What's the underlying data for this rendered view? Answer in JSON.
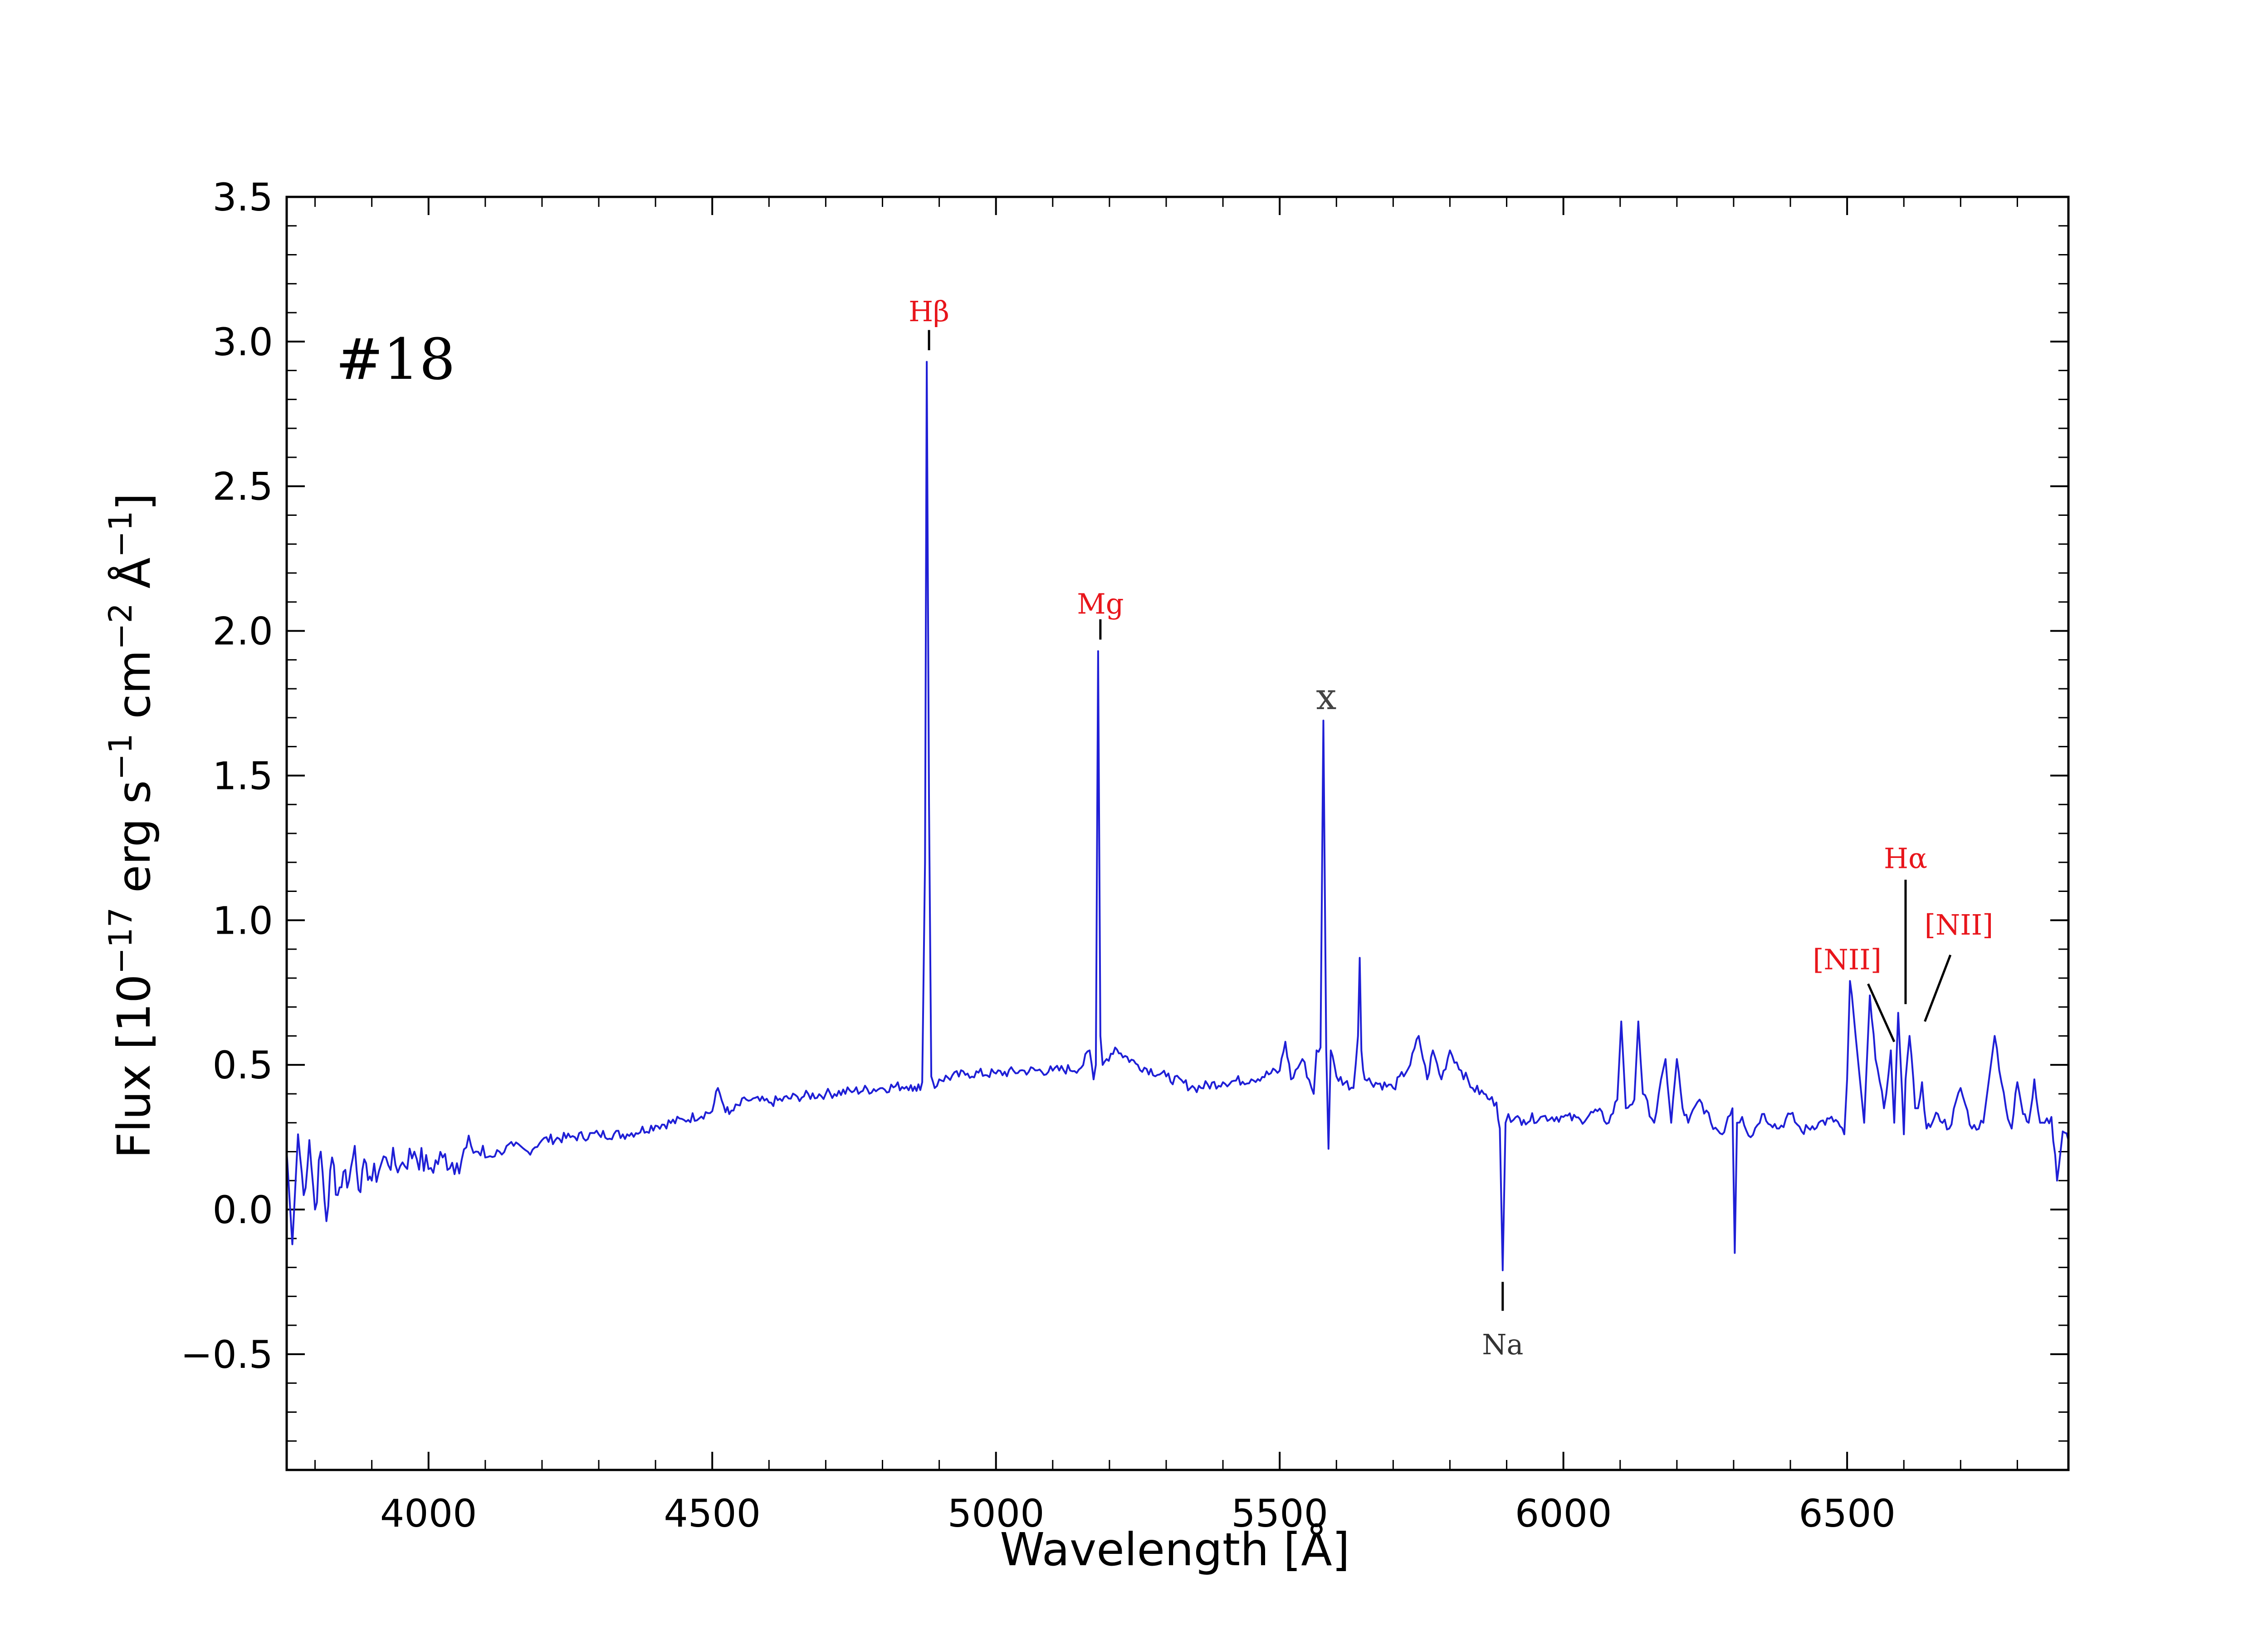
{
  "chart_data": {
    "type": "line",
    "panel_label": "#18",
    "xlabel": "Wavelength [Å]",
    "ylabel": {
      "text_a": "Flux [10",
      "exp1": "−17",
      "text_b": " erg s",
      "exp2": "−1",
      "text_c": " cm",
      "exp3": "−2",
      "text_d": " Å",
      "exp4": "−1",
      "text_e": "]"
    },
    "xlim": [
      3750,
      6890
    ],
    "ylim": [
      -0.9,
      3.5
    ],
    "xticks": [
      4000,
      4500,
      5000,
      5500,
      6000,
      6500
    ],
    "xtick_labels": [
      "4000",
      "4500",
      "5000",
      "5500",
      "6000",
      "6500"
    ],
    "yticks": [
      -0.5,
      0.0,
      0.5,
      1.0,
      1.5,
      2.0,
      2.5,
      3.0,
      3.5
    ],
    "ytick_labels": [
      "−0.5",
      "0.0",
      "0.5",
      "1.0",
      "1.5",
      "2.0",
      "2.5",
      "3.0",
      "3.5"
    ],
    "grid": false,
    "line_color": "#1f1fd6",
    "series": [
      {
        "x": [
          3750,
          3760,
          3770,
          3780,
          3790,
          3800,
          3810,
          3820,
          3830,
          3840,
          3850,
          3860,
          3870,
          3880,
          3890,
          3900,
          3925,
          3950,
          3975,
          4000,
          4025,
          4050,
          4075,
          4100,
          4125,
          4150,
          4175,
          4200,
          4250,
          4300,
          4350,
          4400,
          4450,
          4500,
          4510,
          4520,
          4530,
          4560,
          4600,
          4650,
          4700,
          4750,
          4800,
          4850,
          4860,
          4870,
          4875,
          4878,
          4882,
          4886,
          4892,
          4900,
          4950,
          5000,
          5050,
          5100,
          5150,
          5165,
          5172,
          5176,
          5180,
          5184,
          5188,
          5195,
          5210,
          5220,
          5250,
          5300,
          5350,
          5400,
          5450,
          5500,
          5510,
          5520,
          5540,
          5560,
          5565,
          5572,
          5577,
          5582,
          5586,
          5590,
          5600,
          5630,
          5638,
          5641,
          5644,
          5650,
          5700,
          5730,
          5745,
          5760,
          5770,
          5785,
          5800,
          5820,
          5840,
          5860,
          5870,
          5882,
          5888,
          5893,
          5898,
          5903,
          5912,
          5930,
          5960,
          6000,
          6030,
          6060,
          6080,
          6095,
          6102,
          6110,
          6125,
          6132,
          6140,
          6160,
          6180,
          6190,
          6200,
          6210,
          6220,
          6240,
          6260,
          6280,
          6290,
          6298,
          6302,
          6306,
          6315,
          6330,
          6350,
          6380,
          6400,
          6420,
          6450,
          6480,
          6495,
          6500,
          6505,
          6515,
          6530,
          6540,
          6550,
          6565,
          6577,
          6583,
          6590,
          6597,
          6600,
          6603,
          6610,
          6620,
          6625,
          6632,
          6640,
          6650,
          6660,
          6680,
          6700,
          6720,
          6740,
          6760,
          6780,
          6790,
          6800,
          6810,
          6820,
          6830,
          6840,
          6860,
          6870,
          6880,
          6890
        ],
        "y": [
          0.2,
          -0.12,
          0.26,
          0.05,
          0.24,
          0.0,
          0.2,
          -0.04,
          0.18,
          0.05,
          0.13,
          0.1,
          0.22,
          0.06,
          0.16,
          0.1,
          0.18,
          0.15,
          0.2,
          0.14,
          0.18,
          0.16,
          0.22,
          0.18,
          0.2,
          0.22,
          0.2,
          0.24,
          0.25,
          0.26,
          0.26,
          0.29,
          0.31,
          0.34,
          0.42,
          0.36,
          0.33,
          0.38,
          0.37,
          0.39,
          0.4,
          0.41,
          0.42,
          0.43,
          0.41,
          0.44,
          1.2,
          2.93,
          1.4,
          0.46,
          0.42,
          0.45,
          0.47,
          0.47,
          0.48,
          0.48,
          0.49,
          0.55,
          0.45,
          0.5,
          1.93,
          0.6,
          0.5,
          0.52,
          0.56,
          0.54,
          0.5,
          0.46,
          0.42,
          0.44,
          0.45,
          0.48,
          0.58,
          0.45,
          0.52,
          0.4,
          0.55,
          0.56,
          1.69,
          0.55,
          0.21,
          0.55,
          0.46,
          0.42,
          0.6,
          0.87,
          0.55,
          0.45,
          0.42,
          0.5,
          0.6,
          0.45,
          0.55,
          0.45,
          0.55,
          0.48,
          0.42,
          0.4,
          0.38,
          0.37,
          0.28,
          -0.21,
          0.3,
          0.33,
          0.31,
          0.31,
          0.32,
          0.32,
          0.31,
          0.34,
          0.3,
          0.38,
          0.65,
          0.35,
          0.38,
          0.65,
          0.4,
          0.3,
          0.52,
          0.3,
          0.52,
          0.35,
          0.3,
          0.38,
          0.3,
          0.26,
          0.32,
          0.35,
          -0.15,
          0.3,
          0.32,
          0.25,
          0.33,
          0.28,
          0.33,
          0.27,
          0.3,
          0.31,
          0.26,
          0.45,
          0.79,
          0.6,
          0.3,
          0.74,
          0.52,
          0.35,
          0.55,
          0.3,
          0.68,
          0.4,
          0.26,
          0.45,
          0.6,
          0.35,
          0.35,
          0.44,
          0.28,
          0.3,
          0.33,
          0.28,
          0.42,
          0.28,
          0.3,
          0.6,
          0.35,
          0.28,
          0.44,
          0.33,
          0.3,
          0.45,
          0.3,
          0.32,
          0.1,
          0.27,
          0.24
        ]
      }
    ],
    "annotations": [
      {
        "label": "Hβ",
        "x": 4882,
        "color": "#e8151b"
      },
      {
        "label": "Mg",
        "x": 5184,
        "color": "#e8151b"
      },
      {
        "label": "x",
        "x": 5582,
        "color": "#444444"
      },
      {
        "label": "Na",
        "x": 5893,
        "color": "#333333"
      },
      {
        "label": "Hα",
        "x": 6603,
        "color": "#e8151b"
      },
      {
        "label": "[NII]",
        "x": 6583,
        "color": "#e8151b"
      },
      {
        "label": "[NII]",
        "x": 6632,
        "color": "#e8151b"
      }
    ]
  }
}
